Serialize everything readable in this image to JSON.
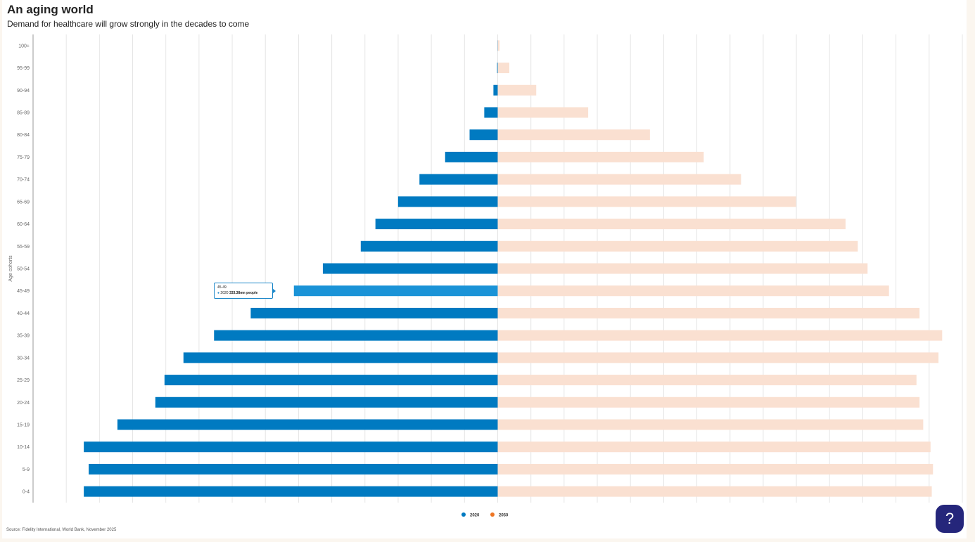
{
  "page": {
    "title": "An aging world",
    "subtitle": "Demand for healthcare will grow strongly in the decades to come",
    "source": "Source: Fidelity International, World Bank, November 2025",
    "help_label": "?"
  },
  "tooltip": {
    "category": "45-49",
    "series": "2020",
    "value": "333.38mn people"
  },
  "colors": {
    "series_2020": "#007ac1",
    "series_2020_highlight": "#1a93d7",
    "series_2050": "#fae0d1",
    "legend_2050_marker": "#ee7523",
    "grid": "#e6e6e6",
    "axis_label": "#666666"
  },
  "chart_data": {
    "type": "bar",
    "orientation": "horizontal",
    "layout": "population-pyramid",
    "categories": [
      "0-4",
      "5-9",
      "10-14",
      "15-19",
      "20-24",
      "25-29",
      "30-34",
      "35-39",
      "40-44",
      "45-49",
      "50-54",
      "55-59",
      "60-64",
      "65-69",
      "70-74",
      "75-79",
      "80-84",
      "85-89",
      "90-94",
      "95-99",
      "100+"
    ],
    "series": [
      {
        "name": "2020",
        "side": "left",
        "values": [
          677,
          669,
          677,
          622,
          560,
          545,
          514,
          464,
          404,
          333.38,
          286,
          224,
          200,
          163,
          128,
          86,
          46,
          22,
          7,
          1,
          0.3
        ]
      },
      {
        "name": "2050",
        "side": "right",
        "values": [
          710,
          712,
          708,
          696,
          690,
          685,
          721,
          727,
          690,
          640,
          605,
          589,
          569,
          488,
          398,
          337,
          249,
          148,
          63,
          19,
          3
        ]
      }
    ],
    "xlim": [
      -760,
      760
    ],
    "yaxis_label": "Age cohorts",
    "highlight": {
      "series": "2020",
      "category": "45-49"
    },
    "legend": {
      "position": "bottom-center",
      "items": [
        "2020",
        "2050"
      ]
    },
    "grid": true
  }
}
